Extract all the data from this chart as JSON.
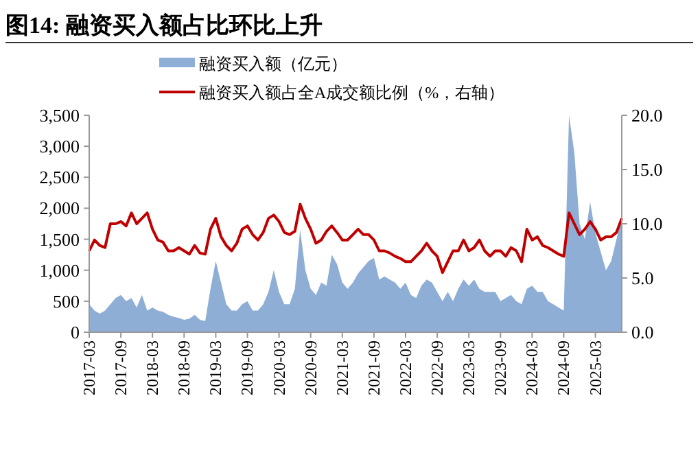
{
  "chart_data": {
    "type": "area",
    "title": "图14:  融资买入额占比环比上升",
    "legend": "top",
    "grid": false,
    "x": [
      "2017-03",
      "2017-04",
      "2017-05",
      "2017-06",
      "2017-07",
      "2017-08",
      "2017-09",
      "2017-10",
      "2017-11",
      "2017-12",
      "2018-01",
      "2018-02",
      "2018-03",
      "2018-04",
      "2018-05",
      "2018-06",
      "2018-07",
      "2018-08",
      "2018-09",
      "2018-10",
      "2018-11",
      "2018-12",
      "2019-01",
      "2019-02",
      "2019-03",
      "2019-04",
      "2019-05",
      "2019-06",
      "2019-07",
      "2019-08",
      "2019-09",
      "2019-10",
      "2019-11",
      "2019-12",
      "2020-01",
      "2020-02",
      "2020-03",
      "2020-04",
      "2020-05",
      "2020-06",
      "2020-07",
      "2020-08",
      "2020-09",
      "2020-10",
      "2020-11",
      "2020-12",
      "2021-01",
      "2021-02",
      "2021-03",
      "2021-04",
      "2021-05",
      "2021-06",
      "2021-07",
      "2021-08",
      "2021-09",
      "2021-10",
      "2021-11",
      "2021-12",
      "2022-01",
      "2022-02",
      "2022-03",
      "2022-04",
      "2022-05",
      "2022-06",
      "2022-07",
      "2022-08",
      "2022-09",
      "2022-10",
      "2022-11",
      "2022-12",
      "2023-01",
      "2023-02",
      "2023-03",
      "2023-04",
      "2023-05",
      "2023-06",
      "2023-07",
      "2023-08",
      "2023-09",
      "2023-10",
      "2023-11",
      "2023-12",
      "2024-01",
      "2024-02",
      "2024-03",
      "2024-04",
      "2024-05",
      "2024-06",
      "2024-07",
      "2024-08",
      "2024-09",
      "2024-10",
      "2024-11",
      "2024-12",
      "2025-01",
      "2025-02",
      "2025-03",
      "2025-04",
      "2025-05",
      "2025-06",
      "2025-07",
      "2025-08"
    ],
    "xlim": [
      "2017-03",
      "2025-08"
    ],
    "xticks": [
      "2017-03",
      "2017-09",
      "2018-03",
      "2018-09",
      "2019-03",
      "2019-09",
      "2020-03",
      "2020-09",
      "2021-03",
      "2021-09",
      "2022-03",
      "2022-09",
      "2023-03",
      "2023-09",
      "2024-03",
      "2024-09",
      "2025-03"
    ],
    "ylim": [
      0,
      3500
    ],
    "yticks": [
      {
        "value": 0,
        "label": "0"
      },
      {
        "value": 500,
        "label": "500"
      },
      {
        "value": 1000,
        "label": "1,000"
      },
      {
        "value": 1500,
        "label": "1,500"
      },
      {
        "value": 2000,
        "label": "2,000"
      },
      {
        "value": 2500,
        "label": "2,500"
      },
      {
        "value": 3000,
        "label": "3,000"
      },
      {
        "value": 3500,
        "label": "3,500"
      }
    ],
    "y2lim": [
      0,
      20
    ],
    "y2ticks": [
      {
        "value": 0,
        "label": "0.0"
      },
      {
        "value": 5,
        "label": "5.0"
      },
      {
        "value": 10,
        "label": "10.0"
      },
      {
        "value": 15,
        "label": "15.0"
      },
      {
        "value": 20,
        "label": "20.0"
      }
    ],
    "series": [
      {
        "name": "融资买入额（亿元）",
        "color": "#8eaed6",
        "values": [
          450,
          350,
          300,
          350,
          450,
          550,
          600,
          500,
          550,
          400,
          600,
          350,
          400,
          350,
          330,
          280,
          250,
          230,
          200,
          220,
          280,
          200,
          180,
          700,
          1150,
          800,
          450,
          350,
          350,
          450,
          500,
          350,
          350,
          450,
          650,
          1000,
          650,
          450,
          450,
          700,
          1650,
          1000,
          700,
          600,
          800,
          750,
          1250,
          1100,
          800,
          700,
          800,
          950,
          1050,
          1150,
          1200,
          850,
          900,
          850,
          800,
          700,
          800,
          600,
          550,
          750,
          850,
          800,
          650,
          500,
          650,
          500,
          700,
          850,
          750,
          850,
          700,
          650,
          650,
          650,
          500,
          550,
          600,
          500,
          450,
          700,
          750,
          650,
          650,
          500,
          450,
          400,
          350,
          3500,
          2900,
          1750,
          1500,
          2100,
          1600,
          1300,
          1000,
          1150,
          1500,
          1900
        ]
      },
      {
        "name": "融资买入额占全A成交额比例（%，右轴）",
        "type": "line",
        "axis": "y2",
        "color": "#c00000",
        "values": [
          7.5,
          8.5,
          8,
          7.8,
          10,
          10,
          10.2,
          9.8,
          11,
          10,
          10.5,
          11,
          9.5,
          8.5,
          8.3,
          7.5,
          7.5,
          7.8,
          7.5,
          7.2,
          8,
          7.3,
          7.2,
          9.5,
          10.5,
          8.8,
          8,
          7.5,
          8.2,
          9.5,
          9.8,
          9,
          8.5,
          9.2,
          10.5,
          10.8,
          10.2,
          9.2,
          9,
          9.3,
          11.8,
          10.5,
          9.5,
          8.2,
          8.5,
          9.3,
          9.8,
          9.2,
          8.5,
          8.5,
          9,
          9.5,
          9,
          9,
          8.5,
          7.5,
          7.5,
          7.3,
          7,
          6.8,
          6.5,
          6.5,
          7,
          7.5,
          8.2,
          7.5,
          7,
          5.5,
          6.5,
          7.5,
          7.5,
          8.5,
          7.5,
          7.8,
          8.5,
          7.5,
          7,
          7.5,
          7.5,
          7,
          7.8,
          7.5,
          6.5,
          9.5,
          8.5,
          8.8,
          8,
          7.8,
          7.5,
          7.2,
          7,
          11,
          10,
          9,
          9.5,
          10.2,
          9.5,
          8.5,
          8.8,
          8.8,
          9.2,
          10.5
        ]
      }
    ]
  }
}
